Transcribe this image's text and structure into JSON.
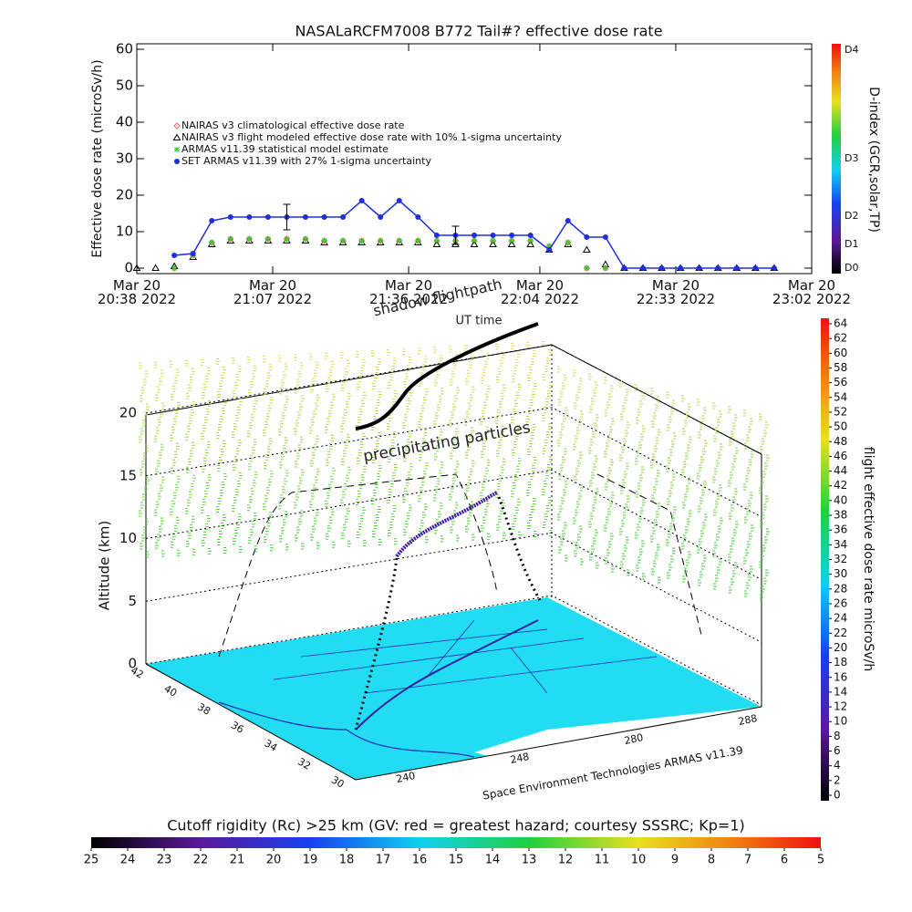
{
  "chart_data": [
    {
      "type": "line",
      "title": "NASALaRCFM7008  B772 Tail#? effective dose rate",
      "y_label": "Effective dose rate (microSv/h)",
      "x": [
        "20:38",
        "20:42",
        "20:46",
        "20:50",
        "20:54",
        "20:58",
        "21:02",
        "21:06",
        "21:10",
        "21:14",
        "21:18",
        "21:22",
        "21:26",
        "21:30",
        "21:34",
        "21:38",
        "21:42",
        "21:46",
        "21:50",
        "21:54",
        "21:58",
        "22:02",
        "22:06",
        "22:10",
        "22:14",
        "22:18",
        "22:22",
        "22:26",
        "22:30",
        "22:34",
        "22:38",
        "22:42",
        "22:46",
        "22:50",
        "22:54"
      ],
      "xlim": [
        "20:38",
        "23:02"
      ],
      "xticks": [
        {
          "value": "20:38",
          "label": "Mar 20\n20:38 2022"
        },
        {
          "value": "21:07",
          "label": "Mar 20\n21:07 2022"
        },
        {
          "value": "21:36",
          "label": "Mar 20\n21:36 2022"
        },
        {
          "value": "22:04",
          "label": "Mar 20\n22:04 2022"
        },
        {
          "value": "22:33",
          "label": "Mar 20\n22:33 2022"
        },
        {
          "value": "23:02",
          "label": "Mar 20\n23:02 2022"
        }
      ],
      "ylim": [
        -1.5,
        61.5
      ],
      "yticks": [
        0,
        10,
        20,
        30,
        40,
        50,
        60
      ],
      "series": [
        {
          "name": "NAIRAS v3 climatological effective dose rate",
          "color": "#ff6060",
          "marker": "diamond",
          "values": [
            null,
            null,
            0,
            3.5,
            7,
            8,
            8,
            8,
            8,
            8,
            7.5,
            7.5,
            7.5,
            7.5,
            7.5,
            7.5,
            7.5,
            7.5,
            7.5,
            7.5,
            7.5,
            7.5,
            6,
            7,
            0,
            0,
            null,
            null,
            null,
            null,
            null,
            null,
            null,
            null,
            null
          ]
        },
        {
          "name": "NAIRAS v3 flight modeled effective dose rate with 10% 1-sigma uncertainty",
          "color": "#000000",
          "marker": "triangle",
          "values": [
            0,
            0,
            0.5,
            3,
            6.5,
            7.5,
            7.5,
            7.5,
            7.5,
            7.5,
            7,
            7,
            7,
            7,
            7,
            7,
            6.5,
            6.5,
            6.5,
            6.5,
            6.5,
            6.5,
            5,
            6.5,
            5,
            1,
            0,
            0,
            0,
            0,
            0,
            0,
            0,
            0,
            0
          ]
        },
        {
          "name": "ARMAS v11.39 statistical model estimate",
          "color": "#33cc33",
          "marker": "asterisk",
          "values": [
            null,
            null,
            0,
            3.5,
            7,
            8,
            8,
            8,
            8,
            8,
            7.5,
            7.5,
            7.5,
            7.5,
            7.5,
            7.5,
            7.5,
            7.5,
            7.5,
            7.5,
            7.5,
            7.5,
            6,
            7,
            0,
            0,
            null,
            null,
            null,
            null,
            null,
            null,
            null,
            null,
            null
          ]
        },
        {
          "name": "SET ARMAS v11.39 with 27% 1-sigma uncertainty",
          "color": "#1e2ee0",
          "marker": "circle",
          "line": true,
          "values": [
            null,
            null,
            3.5,
            4,
            13,
            14,
            14,
            14,
            14,
            14,
            14,
            14,
            18.5,
            14,
            18.5,
            14,
            9,
            9,
            9,
            9,
            9,
            9,
            5,
            13,
            8.5,
            8.5,
            0,
            0,
            0,
            0,
            0,
            0,
            0,
            0,
            0
          ],
          "errors": [
            null,
            null,
            null,
            null,
            null,
            null,
            null,
            null,
            3.5,
            null,
            null,
            null,
            null,
            null,
            null,
            null,
            null,
            2.5,
            null,
            null,
            null,
            null,
            null,
            null,
            null,
            null,
            null,
            null,
            null,
            null,
            null,
            null,
            null,
            null,
            null
          ]
        }
      ],
      "colorbar_label": "D-index (GCR,solar,TP)",
      "colorbar_ticks": [
        "D0",
        "D1",
        "D2",
        "D3",
        "D4"
      ]
    },
    {
      "type": "surface3d",
      "annotations": [
        "shadow flightpath",
        "UT time",
        "precipitating particles"
      ],
      "z_label": "Altitude (km)",
      "zlim": [
        0,
        20
      ],
      "zticks": [
        0,
        5,
        10,
        15,
        20
      ],
      "lat_ticks": [
        42,
        40,
        38,
        36,
        34,
        32,
        30
      ],
      "lon_ticks": [
        240,
        248,
        280,
        288
      ],
      "credit": "Space Environment Technologies ARMAS v11.39"
    },
    {
      "type": "colorbar",
      "orientation": "vertical",
      "label": "flight effective dose rate microSv/h",
      "ylim": [
        0,
        64
      ],
      "yticks": [
        0,
        2,
        4,
        6,
        8,
        10,
        12,
        14,
        16,
        18,
        20,
        22,
        24,
        26,
        28,
        30,
        32,
        34,
        36,
        38,
        40,
        42,
        44,
        46,
        48,
        50,
        52,
        54,
        56,
        58,
        60,
        62,
        64
      ]
    },
    {
      "type": "colorbar",
      "orientation": "horizontal",
      "title": "Cutoff rigidity (Rc) >25 km (GV: red = greatest hazard; courtesy SSSRC; Kp=1)",
      "xlim": [
        25,
        5
      ],
      "xticks": [
        25,
        24,
        23,
        22,
        21,
        20,
        19,
        18,
        17,
        16,
        15,
        14,
        13,
        12,
        11,
        10,
        9,
        8,
        7,
        6,
        5
      ]
    }
  ]
}
